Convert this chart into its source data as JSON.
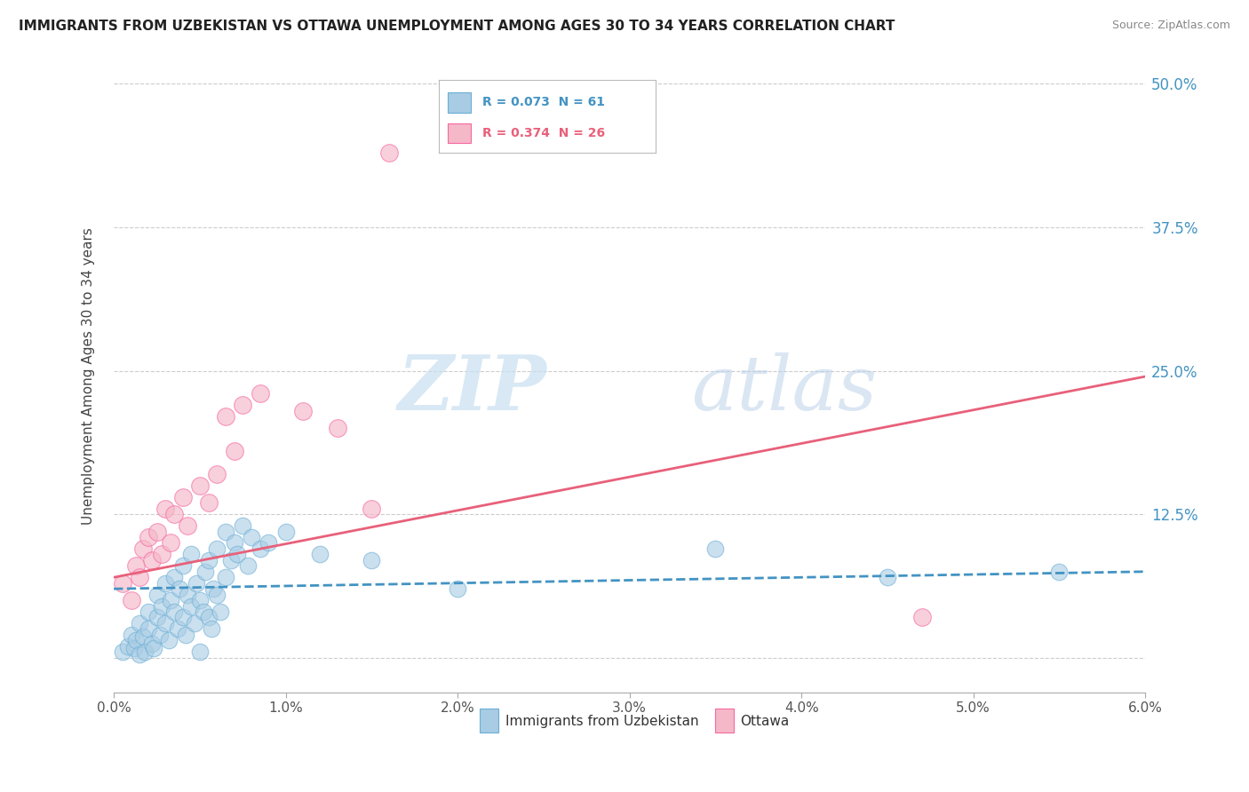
{
  "title": "IMMIGRANTS FROM UZBEKISTAN VS OTTAWA UNEMPLOYMENT AMONG AGES 30 TO 34 YEARS CORRELATION CHART",
  "source": "Source: ZipAtlas.com",
  "ylabel": "Unemployment Among Ages 30 to 34 years",
  "xmin": 0.0,
  "xmax": 6.0,
  "ymin": -3.0,
  "ymax": 52.0,
  "yticks": [
    0,
    12.5,
    25.0,
    37.5,
    50.0
  ],
  "ytick_labels_right": [
    "",
    "12.5%",
    "25.0%",
    "37.5%",
    "50.0%"
  ],
  "legend_blue_r": "R = 0.073",
  "legend_blue_n": "N = 61",
  "legend_pink_r": "R = 0.374",
  "legend_pink_n": "N = 26",
  "blue_color": "#a8cce4",
  "pink_color": "#f4b8c8",
  "blue_edge_color": "#6baed6",
  "pink_edge_color": "#f768a1",
  "blue_line_color": "#4393c3",
  "pink_line_color": "#e8607a",
  "blue_scatter": [
    [
      0.05,
      0.5
    ],
    [
      0.08,
      1.0
    ],
    [
      0.1,
      2.0
    ],
    [
      0.12,
      0.8
    ],
    [
      0.13,
      1.5
    ],
    [
      0.15,
      3.0
    ],
    [
      0.15,
      0.3
    ],
    [
      0.17,
      1.8
    ],
    [
      0.18,
      0.5
    ],
    [
      0.2,
      2.5
    ],
    [
      0.2,
      4.0
    ],
    [
      0.22,
      1.2
    ],
    [
      0.23,
      0.8
    ],
    [
      0.25,
      3.5
    ],
    [
      0.25,
      5.5
    ],
    [
      0.27,
      2.0
    ],
    [
      0.28,
      4.5
    ],
    [
      0.3,
      3.0
    ],
    [
      0.3,
      6.5
    ],
    [
      0.32,
      1.5
    ],
    [
      0.33,
      5.0
    ],
    [
      0.35,
      4.0
    ],
    [
      0.35,
      7.0
    ],
    [
      0.37,
      2.5
    ],
    [
      0.38,
      6.0
    ],
    [
      0.4,
      3.5
    ],
    [
      0.4,
      8.0
    ],
    [
      0.42,
      2.0
    ],
    [
      0.43,
      5.5
    ],
    [
      0.45,
      4.5
    ],
    [
      0.45,
      9.0
    ],
    [
      0.47,
      3.0
    ],
    [
      0.48,
      6.5
    ],
    [
      0.5,
      5.0
    ],
    [
      0.5,
      0.5
    ],
    [
      0.52,
      4.0
    ],
    [
      0.53,
      7.5
    ],
    [
      0.55,
      3.5
    ],
    [
      0.55,
      8.5
    ],
    [
      0.57,
      2.5
    ],
    [
      0.58,
      6.0
    ],
    [
      0.6,
      5.5
    ],
    [
      0.6,
      9.5
    ],
    [
      0.62,
      4.0
    ],
    [
      0.65,
      7.0
    ],
    [
      0.65,
      11.0
    ],
    [
      0.68,
      8.5
    ],
    [
      0.7,
      10.0
    ],
    [
      0.72,
      9.0
    ],
    [
      0.75,
      11.5
    ],
    [
      0.78,
      8.0
    ],
    [
      0.8,
      10.5
    ],
    [
      0.85,
      9.5
    ],
    [
      0.9,
      10.0
    ],
    [
      1.0,
      11.0
    ],
    [
      1.2,
      9.0
    ],
    [
      1.5,
      8.5
    ],
    [
      2.0,
      6.0
    ],
    [
      3.5,
      9.5
    ],
    [
      4.5,
      7.0
    ],
    [
      5.5,
      7.5
    ]
  ],
  "pink_scatter": [
    [
      0.05,
      6.5
    ],
    [
      0.1,
      5.0
    ],
    [
      0.13,
      8.0
    ],
    [
      0.15,
      7.0
    ],
    [
      0.17,
      9.5
    ],
    [
      0.2,
      10.5
    ],
    [
      0.22,
      8.5
    ],
    [
      0.25,
      11.0
    ],
    [
      0.28,
      9.0
    ],
    [
      0.3,
      13.0
    ],
    [
      0.33,
      10.0
    ],
    [
      0.35,
      12.5
    ],
    [
      0.4,
      14.0
    ],
    [
      0.43,
      11.5
    ],
    [
      0.5,
      15.0
    ],
    [
      0.55,
      13.5
    ],
    [
      0.6,
      16.0
    ],
    [
      0.65,
      21.0
    ],
    [
      0.7,
      18.0
    ],
    [
      0.75,
      22.0
    ],
    [
      0.85,
      23.0
    ],
    [
      1.1,
      21.5
    ],
    [
      1.3,
      20.0
    ],
    [
      1.5,
      13.0
    ],
    [
      4.7,
      3.5
    ],
    [
      1.6,
      44.0
    ]
  ],
  "blue_trendline_x": [
    0.0,
    6.0
  ],
  "blue_trendline_y": [
    6.0,
    7.5
  ],
  "pink_trendline_x": [
    0.0,
    6.0
  ],
  "pink_trendline_y": [
    7.0,
    24.5
  ],
  "watermark_zip": "ZIP",
  "watermark_atlas": "atlas",
  "figsize": [
    14.06,
    8.92
  ],
  "dpi": 100
}
